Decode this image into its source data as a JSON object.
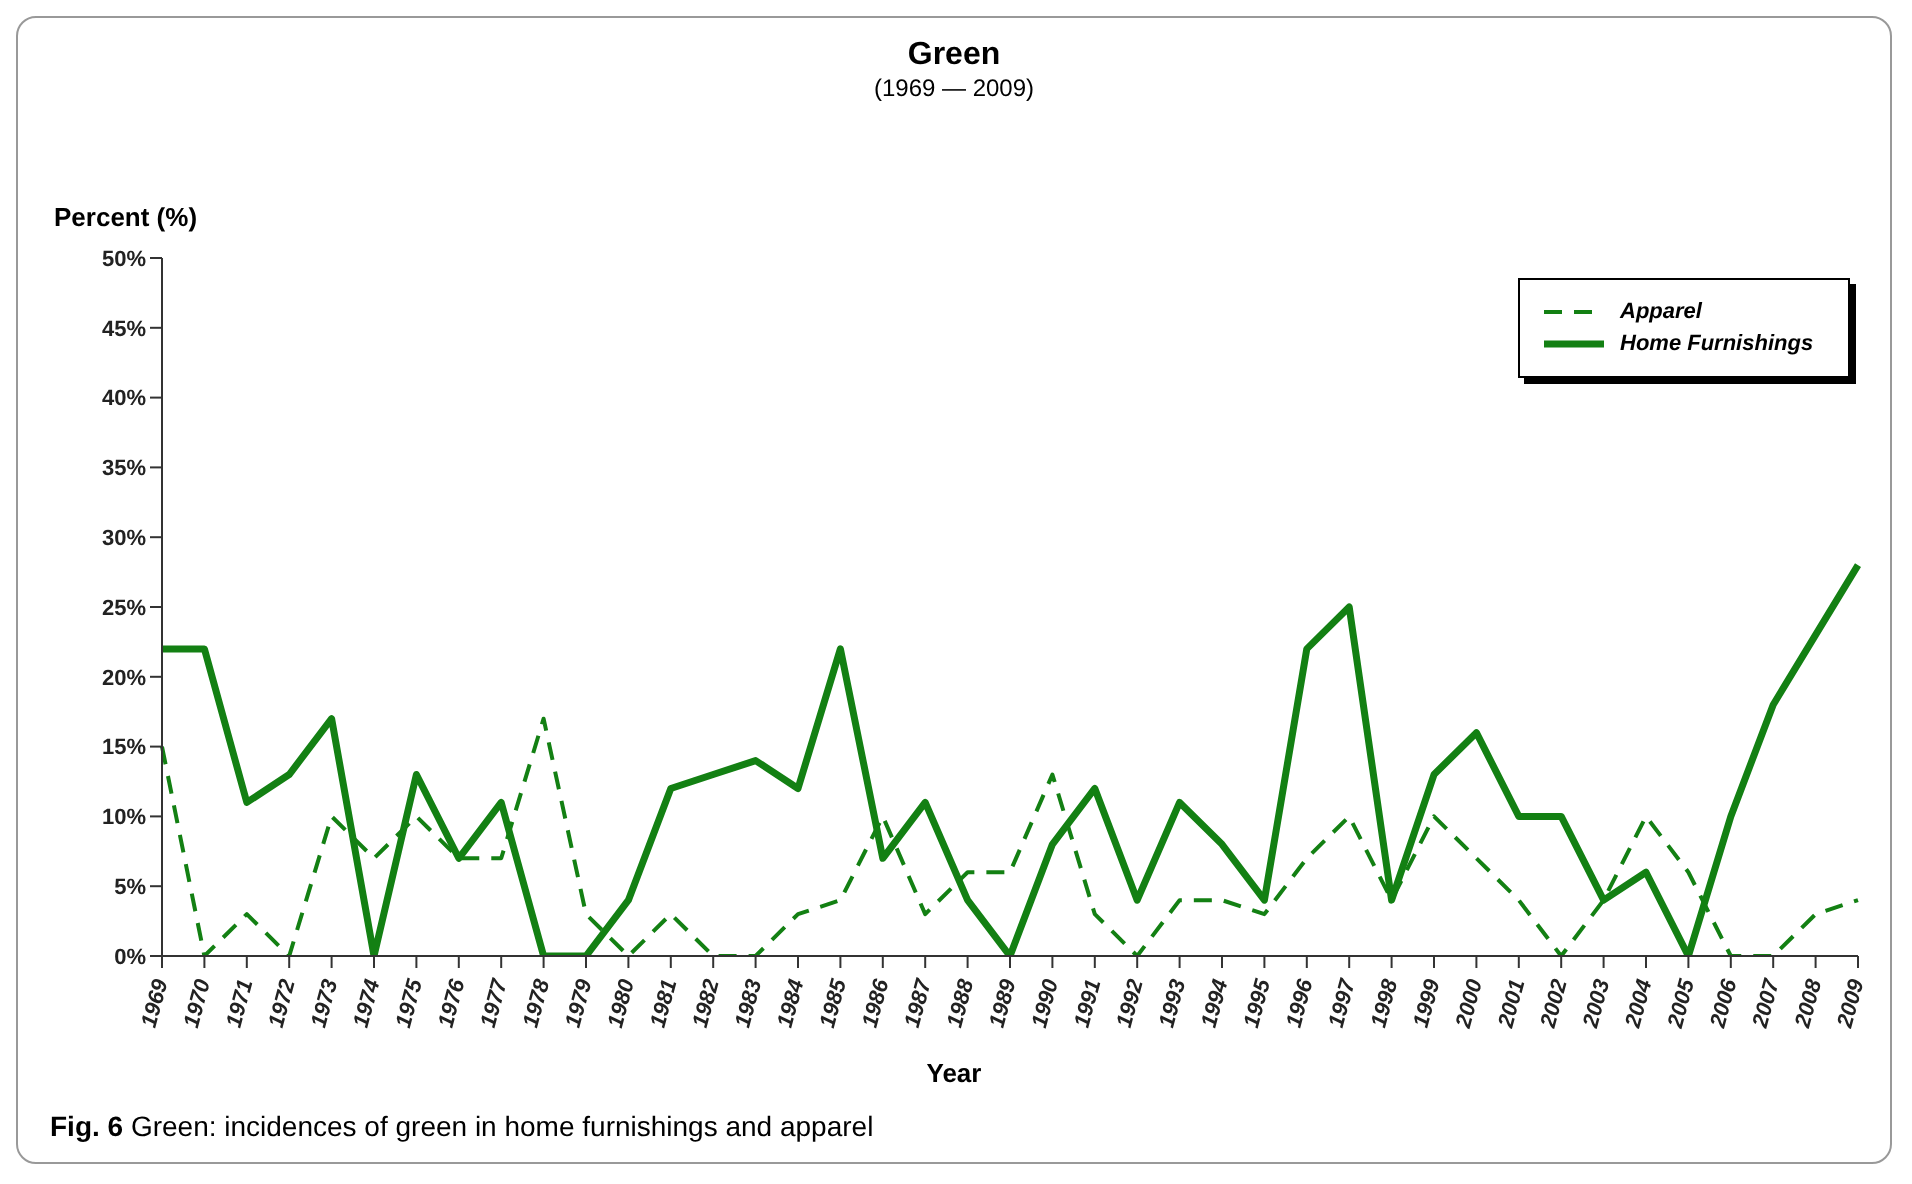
{
  "chart_data": {
    "type": "line",
    "title": "Green",
    "subtitle": "(1969 — 2009)",
    "xlabel": "Year",
    "ylabel": "Percent (%)",
    "categories": [
      "1969",
      "1970",
      "1971",
      "1972",
      "1973",
      "1974",
      "1975",
      "1976",
      "1977",
      "1978",
      "1979",
      "1980",
      "1981",
      "1982",
      "1983",
      "1984",
      "1985",
      "1986",
      "1987",
      "1988",
      "1989",
      "1990",
      "1991",
      "1992",
      "1993",
      "1994",
      "1995",
      "1996",
      "1997",
      "1998",
      "1999",
      "2000",
      "2001",
      "2002",
      "2003",
      "2004",
      "2005",
      "2006",
      "2007",
      "2008",
      "2009"
    ],
    "series": [
      {
        "name": "Apparel",
        "color": "#138013",
        "line_style": "dashed",
        "values": [
          15,
          0,
          3,
          0,
          10,
          7,
          10,
          7,
          7,
          17,
          3,
          0,
          3,
          0,
          0,
          3,
          4,
          10,
          3,
          6,
          6,
          13,
          3,
          0,
          4,
          4,
          3,
          7,
          10,
          4,
          10,
          7,
          4,
          0,
          4,
          10,
          6,
          0,
          0,
          3,
          4
        ]
      },
      {
        "name": "Home Furnishings",
        "color": "#138013",
        "line_style": "solid",
        "values": [
          22,
          22,
          11,
          13,
          17,
          0,
          13,
          7,
          11,
          0,
          0,
          4,
          12,
          13,
          14,
          12,
          22,
          7,
          11,
          4,
          0,
          8,
          12,
          4,
          11,
          8,
          4,
          22,
          25,
          4,
          13,
          16,
          10,
          10,
          4,
          6,
          0,
          10,
          18,
          23,
          28
        ]
      }
    ],
    "ylim": [
      0,
      50
    ],
    "yticks": [
      {
        "value": 0,
        "label": "0%"
      },
      {
        "value": 5,
        "label": "5%"
      },
      {
        "value": 10,
        "label": "10%"
      },
      {
        "value": 15,
        "label": "15%"
      },
      {
        "value": 20,
        "label": "20%"
      },
      {
        "value": 25,
        "label": "25%"
      },
      {
        "value": 30,
        "label": "30%"
      },
      {
        "value": 35,
        "label": "35%"
      },
      {
        "value": 40,
        "label": "40%"
      },
      {
        "value": 45,
        "label": "45%"
      },
      {
        "value": 50,
        "label": "50%"
      }
    ],
    "grid": false,
    "legend": "top right",
    "marker": "none",
    "annotations": [
      "Fig. 6 Green: incidences of green in home furnishings and apparel"
    ]
  }
}
